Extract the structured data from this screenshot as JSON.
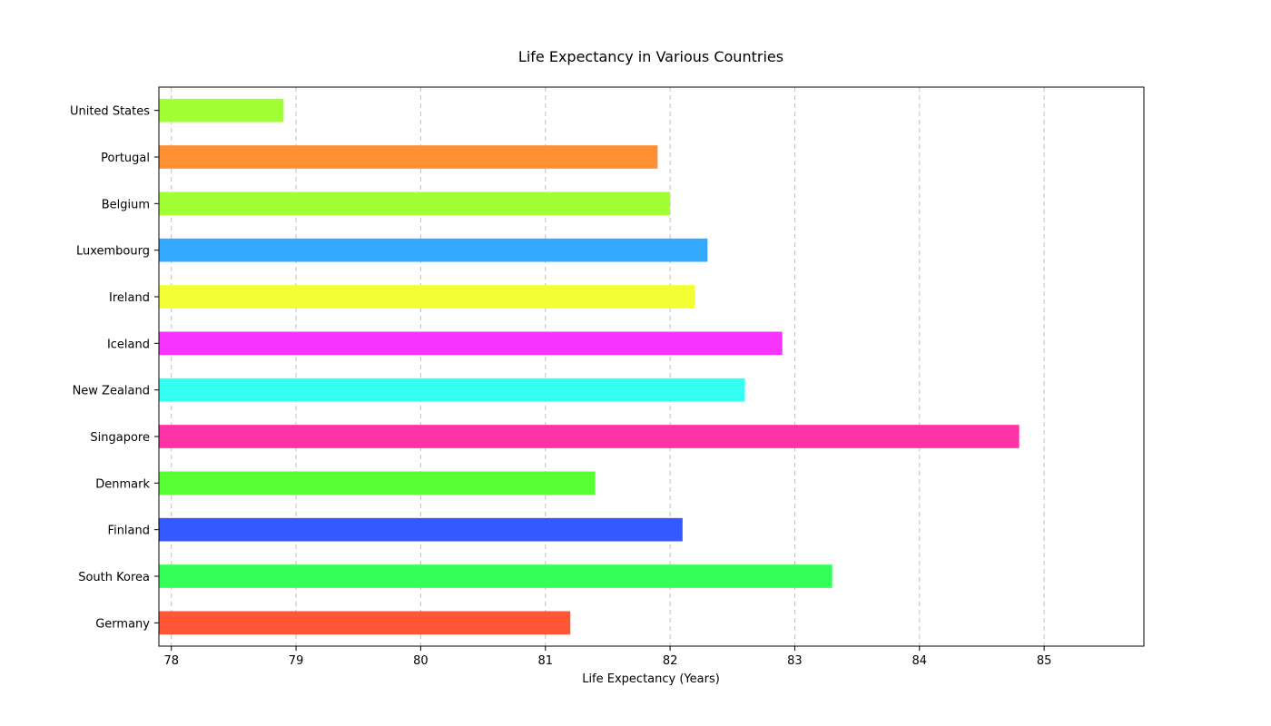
{
  "chart_data": {
    "type": "bar",
    "orientation": "horizontal",
    "title": "Life Expectancy in Various Countries",
    "xlabel": "Life Expectancy (Years)",
    "ylabel": "",
    "xlim": [
      77.9,
      85.8
    ],
    "xticks": [
      78,
      79,
      80,
      81,
      82,
      83,
      84,
      85
    ],
    "grid": "x-dashed",
    "categories": [
      "United States",
      "Portugal",
      "Belgium",
      "Luxembourg",
      "Ireland",
      "Iceland",
      "New Zealand",
      "Singapore",
      "Denmark",
      "Finland",
      "South Korea",
      "Germany"
    ],
    "values": [
      78.9,
      81.9,
      82.0,
      82.3,
      82.2,
      82.9,
      82.6,
      84.8,
      81.4,
      82.1,
      83.3,
      81.2
    ],
    "colors": [
      "#a2ff33",
      "#ff8f33",
      "#a2ff33",
      "#33a8ff",
      "#f3ff33",
      "#f733ff",
      "#33fff3",
      "#ff33a8",
      "#58ff33",
      "#3358ff",
      "#33ff58",
      "#ff5733"
    ]
  }
}
